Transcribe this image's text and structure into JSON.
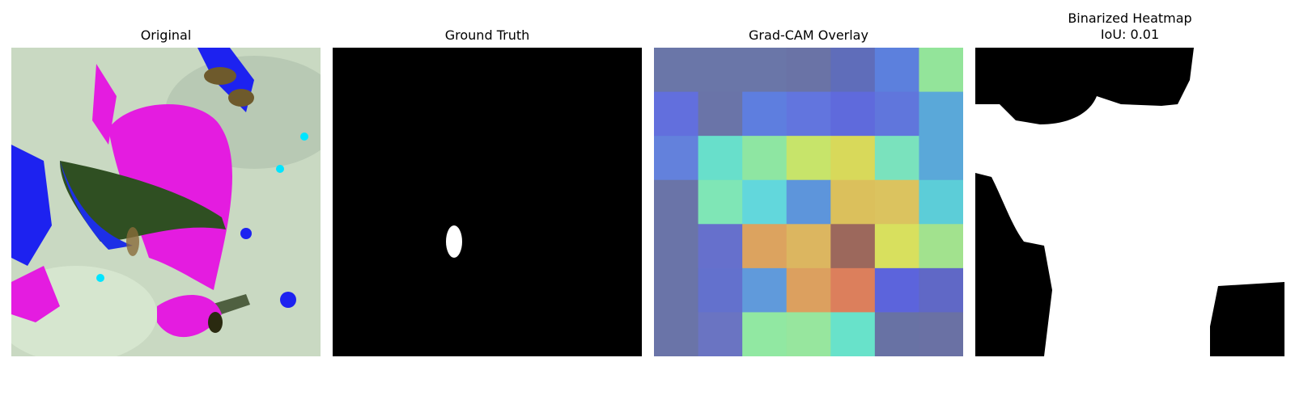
{
  "panels": [
    {
      "title": "Original"
    },
    {
      "title": "Ground Truth"
    },
    {
      "title": "Grad-CAM Overlay"
    },
    {
      "title": "Binarized Heatmap\nIoU: 0.01"
    }
  ],
  "gradcam_grid": [
    [
      "#6a76a8",
      "#6a76a8",
      "#6a76a8",
      "#6a73a6",
      "#5f6dba",
      "#5c80dd",
      "#93e49a"
    ],
    [
      "#626fdd",
      "#6a74a8",
      "#5e7edf",
      "#6275de",
      "#5f6adc",
      "#6076dc",
      "#5aa8d9"
    ],
    [
      "#6381dc",
      "#68dfcb",
      "#8ee6a2",
      "#c7e46a",
      "#d8d95a",
      "#7ae2bd",
      "#5aa8d9"
    ],
    [
      "#6a74a8",
      "#7fe6b6",
      "#62d7dc",
      "#5d95db",
      "#dbc05c",
      "#dbc35f",
      "#5ccdd8"
    ],
    [
      "#6a74a8",
      "#6670cc",
      "#dca35f",
      "#dcb660",
      "#9c685c",
      "#d8e05e",
      "#a2e28e"
    ],
    [
      "#6a74a8",
      "#6371cd",
      "#609adb",
      "#dca05f",
      "#dc7f5c",
      "#5c64dc",
      "#6068c6"
    ],
    [
      "#6a74a8",
      "#6a74c2",
      "#91e8a2",
      "#97e69e",
      "#68e2ca",
      "#6872a4",
      "#6a71a4"
    ]
  ]
}
